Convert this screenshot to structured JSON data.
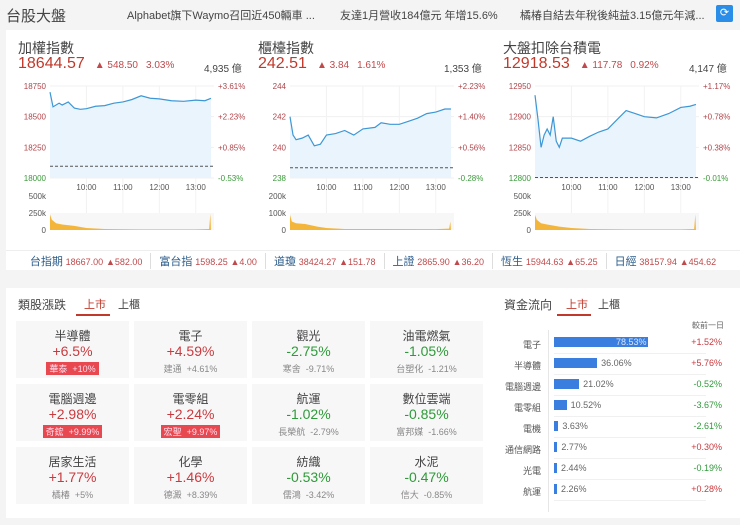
{
  "header": {
    "title": "台股大盤",
    "news": [
      "Alphabet旗下Waymo召回近450輛車 ...",
      "友達1月營收184億元 年增15.6%",
      "橘椿自結去年稅後純益3.15億元年減..."
    ],
    "refresh_icon": "refresh-icon",
    "accent": "#2a8de8"
  },
  "indices": [
    {
      "name": "加權指數",
      "price": "18644.57",
      "change": "▲ 548.50",
      "pct": "3.03%",
      "amount": "4,935 億",
      "yticks": [
        "18750",
        "18500",
        "18250",
        "18000"
      ],
      "pticks": [
        "+3.61%",
        "+2.23%",
        "+0.85%",
        "-0.53%"
      ],
      "vticks": [
        "500k",
        "250k",
        "0"
      ],
      "xticks": [
        "10:00",
        "11:00",
        "12:00",
        "13:00"
      ],
      "ymin": 18000,
      "ymax": 18750,
      "prev_close": 18096.07,
      "vmax": 500000,
      "series": [
        [
          0,
          18700
        ],
        [
          5,
          18580
        ],
        [
          15,
          18610
        ],
        [
          20,
          18595
        ],
        [
          30,
          18620
        ],
        [
          40,
          18570
        ],
        [
          50,
          18560
        ],
        [
          60,
          18565
        ],
        [
          75,
          18585
        ],
        [
          90,
          18590
        ],
        [
          105,
          18610
        ],
        [
          120,
          18620
        ],
        [
          135,
          18640
        ],
        [
          150,
          18670
        ],
        [
          165,
          18650
        ],
        [
          180,
          18645
        ],
        [
          200,
          18630
        ],
        [
          220,
          18625
        ],
        [
          240,
          18635
        ],
        [
          255,
          18630
        ],
        [
          265,
          18650
        ]
      ],
      "volume": [
        [
          0,
          230000
        ],
        [
          3,
          150000
        ],
        [
          10,
          100000
        ],
        [
          20,
          80000
        ],
        [
          40,
          60000
        ],
        [
          60,
          30000
        ],
        [
          90,
          15000
        ],
        [
          150,
          10000
        ],
        [
          240,
          10000
        ],
        [
          262,
          15000
        ],
        [
          264,
          240000
        ]
      ]
    },
    {
      "name": "櫃檯指數",
      "price": "242.51",
      "change": "▲ 3.84",
      "pct": "1.61%",
      "amount": "1,353 億",
      "yticks": [
        "244",
        "242",
        "240",
        "238"
      ],
      "pticks": [
        "+2.23%",
        "+1.40%",
        "+0.56%",
        "-0.28%"
      ],
      "vticks": [
        "200k",
        "100k",
        "0"
      ],
      "xticks": [
        "10:00",
        "11:00",
        "12:00",
        "13:00"
      ],
      "ymin": 238,
      "ymax": 244,
      "prev_close": 238.67,
      "vmax": 200000,
      "series": [
        [
          0,
          242.0
        ],
        [
          5,
          240.8
        ],
        [
          10,
          240.5
        ],
        [
          20,
          240.6
        ],
        [
          30,
          240.8
        ],
        [
          40,
          240.1
        ],
        [
          50,
          240.2
        ],
        [
          60,
          240.8
        ],
        [
          75,
          240.9
        ],
        [
          90,
          241.1
        ],
        [
          105,
          240.8
        ],
        [
          120,
          241.2
        ],
        [
          140,
          241.3
        ],
        [
          150,
          241.6
        ],
        [
          165,
          241.5
        ],
        [
          180,
          241.5
        ],
        [
          195,
          241.7
        ],
        [
          210,
          241.9
        ],
        [
          225,
          242.2
        ],
        [
          240,
          242.3
        ],
        [
          255,
          242.5
        ],
        [
          265,
          242.5
        ]
      ],
      "volume": [
        [
          0,
          90000
        ],
        [
          3,
          50000
        ],
        [
          10,
          40000
        ],
        [
          25,
          35000
        ],
        [
          45,
          20000
        ],
        [
          60,
          12000
        ],
        [
          90,
          6000
        ],
        [
          240,
          5000
        ],
        [
          262,
          8000
        ],
        [
          264,
          50000
        ]
      ]
    },
    {
      "name": "大盤扣除台積電",
      "price": "12918.53",
      "change": "▲ 117.78",
      "pct": "0.92%",
      "amount": "4,147 億",
      "yticks": [
        "12950",
        "12900",
        "12850",
        "12800"
      ],
      "pticks": [
        "+1.17%",
        "+0.78%",
        "+0.38%",
        "-0.01%"
      ],
      "vticks": [
        "500k",
        "250k",
        "0"
      ],
      "xticks": [
        "10:00",
        "11:00",
        "12:00",
        "13:00"
      ],
      "ymin": 12800,
      "ymax": 12950,
      "prev_close": 12800.75,
      "vmax": 500000,
      "series": [
        [
          0,
          12935
        ],
        [
          5,
          12895
        ],
        [
          10,
          12850
        ],
        [
          15,
          12870
        ],
        [
          20,
          12880
        ],
        [
          25,
          12870
        ],
        [
          30,
          12900
        ],
        [
          35,
          12860
        ],
        [
          40,
          12850
        ],
        [
          45,
          12865
        ],
        [
          60,
          12865
        ],
        [
          75,
          12860
        ],
        [
          90,
          12868
        ],
        [
          105,
          12875
        ],
        [
          120,
          12880
        ],
        [
          135,
          12895
        ],
        [
          150,
          12910
        ],
        [
          165,
          12905
        ],
        [
          180,
          12900
        ],
        [
          200,
          12898
        ],
        [
          220,
          12905
        ],
        [
          240,
          12915
        ],
        [
          255,
          12917
        ],
        [
          265,
          12920
        ]
      ],
      "volume": [
        [
          0,
          220000
        ],
        [
          3,
          150000
        ],
        [
          10,
          100000
        ],
        [
          20,
          80000
        ],
        [
          40,
          50000
        ],
        [
          60,
          30000
        ],
        [
          90,
          15000
        ],
        [
          150,
          10000
        ],
        [
          240,
          10000
        ],
        [
          262,
          15000
        ],
        [
          264,
          230000
        ]
      ]
    }
  ],
  "ticker": [
    {
      "name": "台指期",
      "value": "18667.00",
      "change": "▲582.00"
    },
    {
      "name": "富台指",
      "value": "1598.25",
      "change": "▲4.00"
    },
    {
      "name": "道瓊",
      "value": "38424.27",
      "change": "▲151.78"
    },
    {
      "name": "上證",
      "value": "2865.90",
      "change": "▲36.20"
    },
    {
      "name": "恆生",
      "value": "15944.63",
      "change": "▲65.25"
    },
    {
      "name": "日經",
      "value": "38157.94",
      "change": "▲454.62"
    }
  ],
  "sectors": {
    "title": "類股漲跌",
    "tabs": [
      "上市",
      "上櫃"
    ],
    "active_tab": "上市",
    "items": [
      {
        "name": "半導體",
        "pct": "+6.5%",
        "stock": "華泰",
        "stock_pct": "+10%",
        "dir": "up",
        "limit": true
      },
      {
        "name": "電子",
        "pct": "+4.59%",
        "stock": "建通",
        "stock_pct": "+4.61%",
        "dir": "up",
        "limit": false
      },
      {
        "name": "觀光",
        "pct": "-2.75%",
        "stock": "寒舍",
        "stock_pct": "-9.71%",
        "dir": "dn",
        "limit": false
      },
      {
        "name": "油電燃氣",
        "pct": "-1.05%",
        "stock": "台塑化",
        "stock_pct": "-1.21%",
        "dir": "dn",
        "limit": false
      },
      {
        "name": "電腦週邊",
        "pct": "+2.98%",
        "stock": "奇鋐",
        "stock_pct": "+9.99%",
        "dir": "up",
        "limit": true
      },
      {
        "name": "電零組",
        "pct": "+2.24%",
        "stock": "宏聖",
        "stock_pct": "+9.97%",
        "dir": "up",
        "limit": true
      },
      {
        "name": "航運",
        "pct": "-1.02%",
        "stock": "長榮航",
        "stock_pct": "-2.79%",
        "dir": "dn",
        "limit": false
      },
      {
        "name": "數位雲端",
        "pct": "-0.85%",
        "stock": "富邦媒",
        "stock_pct": "-1.66%",
        "dir": "dn",
        "limit": false
      },
      {
        "name": "居家生活",
        "pct": "+1.77%",
        "stock": "橘椿",
        "stock_pct": "+5%",
        "dir": "up",
        "limit": false
      },
      {
        "name": "化學",
        "pct": "+1.46%",
        "stock": "德澱",
        "stock_pct": "+8.39%",
        "dir": "up",
        "limit": false
      },
      {
        "name": "紡織",
        "pct": "-0.53%",
        "stock": "儒鴻",
        "stock_pct": "-3.42%",
        "dir": "dn",
        "limit": false
      },
      {
        "name": "水泥",
        "pct": "-0.47%",
        "stock": "信大",
        "stock_pct": "-0.85%",
        "dir": "dn",
        "limit": false
      }
    ]
  },
  "fund_flow": {
    "title": "資金流向",
    "tabs": [
      "上市",
      "上櫃"
    ],
    "active_tab": "上市",
    "col_header": "較前一日",
    "items": [
      {
        "name": "電子",
        "share": 78.53,
        "share_label": "78.53%",
        "delta": "+1.52%",
        "dir": "up"
      },
      {
        "name": "半導體",
        "share": 36.06,
        "share_label": "36.06%",
        "delta": "+5.76%",
        "dir": "up"
      },
      {
        "name": "電腦週邊",
        "share": 21.02,
        "share_label": "21.02%",
        "delta": "-0.52%",
        "dir": "dn"
      },
      {
        "name": "電零組",
        "share": 10.52,
        "share_label": "10.52%",
        "delta": "-3.67%",
        "dir": "dn"
      },
      {
        "name": "電機",
        "share": 3.63,
        "share_label": "3.63%",
        "delta": "-2.61%",
        "dir": "dn"
      },
      {
        "name": "通信網路",
        "share": 2.77,
        "share_label": "2.77%",
        "delta": "+0.30%",
        "dir": "up"
      },
      {
        "name": "光電",
        "share": 2.44,
        "share_label": "2.44%",
        "delta": "-0.19%",
        "dir": "dn"
      },
      {
        "name": "航運",
        "share": 2.26,
        "share_label": "2.26%",
        "delta": "+0.28%",
        "dir": "up"
      }
    ]
  }
}
